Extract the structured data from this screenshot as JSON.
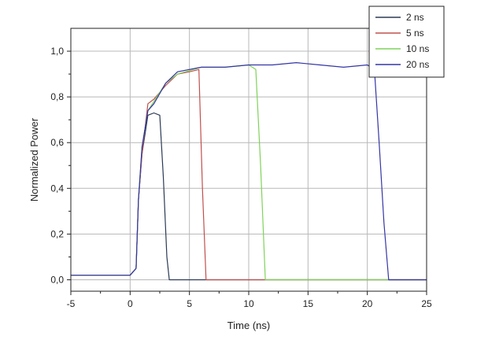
{
  "chart_data": {
    "type": "line",
    "title": "",
    "xlabel": "Time (ns)",
    "ylabel": "Normalized Power",
    "xlim": [
      -5,
      25
    ],
    "ylim": [
      -0.05,
      1.1
    ],
    "xticks": [
      -5,
      0,
      5,
      10,
      15,
      20,
      25
    ],
    "xtick_labels": [
      "-5",
      "0",
      "5",
      "10",
      "15",
      "20",
      "25"
    ],
    "yticks": [
      0.0,
      0.2,
      0.4,
      0.6,
      0.8,
      1.0
    ],
    "ytick_labels": [
      "0,0",
      "0,2",
      "0,4",
      "0,6",
      "0,8",
      "1,0"
    ],
    "grid": true,
    "legend_position": "top-right",
    "series": [
      {
        "name": "2 ns",
        "color": "#2b3a55",
        "x": [
          -5,
          0,
          0.5,
          0.7,
          1.0,
          1.5,
          2.0,
          2.5,
          2.8,
          3.1,
          3.3,
          25
        ],
        "y": [
          0.02,
          0.02,
          0.05,
          0.35,
          0.55,
          0.72,
          0.73,
          0.72,
          0.45,
          0.1,
          0.0,
          0.0
        ]
      },
      {
        "name": "5 ns",
        "color": "#c0504d",
        "x": [
          -5,
          0,
          0.5,
          0.7,
          1.0,
          1.5,
          2.0,
          3.0,
          4.0,
          5.0,
          5.8,
          6.1,
          6.4,
          25
        ],
        "y": [
          0.02,
          0.02,
          0.05,
          0.35,
          0.55,
          0.77,
          0.79,
          0.85,
          0.9,
          0.91,
          0.92,
          0.4,
          0.0,
          0.0
        ]
      },
      {
        "name": "10 ns",
        "color": "#7fd35a",
        "x": [
          -5,
          0,
          0.5,
          0.7,
          1.0,
          1.5,
          2.0,
          3.0,
          4.0,
          6.0,
          8.0,
          10.0,
          10.6,
          11.0,
          11.4,
          25
        ],
        "y": [
          0.02,
          0.02,
          0.05,
          0.35,
          0.58,
          0.74,
          0.78,
          0.86,
          0.9,
          0.93,
          0.93,
          0.94,
          0.92,
          0.5,
          0.0,
          0.0
        ]
      },
      {
        "name": "20 ns",
        "color": "#3535a5",
        "x": [
          -5,
          0,
          0.5,
          0.7,
          1.0,
          1.5,
          2.0,
          3.0,
          4.0,
          6.0,
          8.0,
          10.0,
          12.0,
          14.0,
          16.0,
          18.0,
          20.0,
          20.6,
          21.0,
          21.4,
          21.8,
          25
        ],
        "y": [
          0.02,
          0.02,
          0.05,
          0.35,
          0.58,
          0.74,
          0.77,
          0.86,
          0.91,
          0.93,
          0.93,
          0.94,
          0.94,
          0.95,
          0.94,
          0.93,
          0.94,
          0.92,
          0.6,
          0.25,
          0.0,
          0.0
        ]
      }
    ]
  }
}
